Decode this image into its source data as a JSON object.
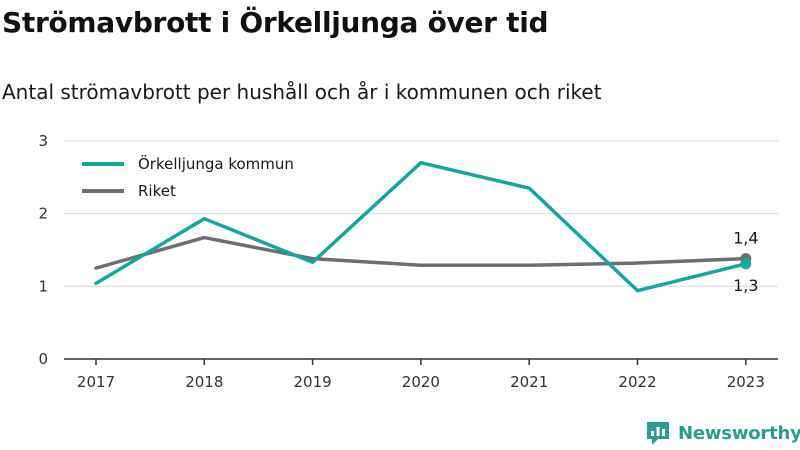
{
  "header": {
    "title": "Strömavbrott i Örkelljunga över tid",
    "subtitle": "Antal strömavbrott per hushåll och år i kommunen och riket"
  },
  "branding": {
    "name": "Newsworthy",
    "icon": "newsworthy-logo-icon",
    "color": "#2a9d8f"
  },
  "chart_data": {
    "type": "line",
    "title": "Strömavbrott i Örkelljunga över tid",
    "subtitle": "Antal strömavbrott per hushåll och år i kommunen och riket",
    "categories": [
      "2017",
      "2018",
      "2019",
      "2020",
      "2021",
      "2022",
      "2023"
    ],
    "series": [
      {
        "name": "Örkelljunga kommun",
        "color": "#13a89e",
        "values": [
          1.04,
          1.93,
          1.33,
          2.7,
          2.35,
          0.94,
          1.31
        ]
      },
      {
        "name": "Riket",
        "color": "#6d6e71",
        "values": [
          1.25,
          1.67,
          1.38,
          1.29,
          1.29,
          1.32,
          1.38
        ]
      }
    ],
    "ylim": [
      0,
      3
    ],
    "yticks": [
      "0",
      "1",
      "2",
      "3"
    ],
    "grid": true,
    "legend": "top-left",
    "end_labels": [
      {
        "series": "Riket",
        "text": "1,4"
      },
      {
        "series": "Örkelljunga kommun",
        "text": "1,3"
      }
    ]
  }
}
